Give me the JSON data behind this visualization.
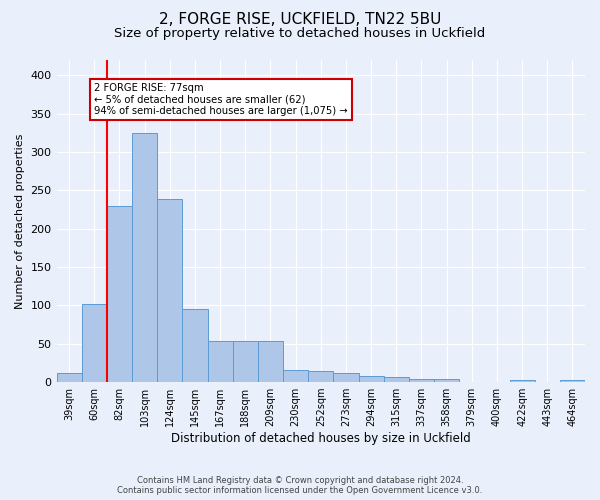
{
  "title1": "2, FORGE RISE, UCKFIELD, TN22 5BU",
  "title2": "Size of property relative to detached houses in Uckfield",
  "xlabel": "Distribution of detached houses by size in Uckfield",
  "ylabel": "Number of detached properties",
  "categories": [
    "39sqm",
    "60sqm",
    "82sqm",
    "103sqm",
    "124sqm",
    "145sqm",
    "167sqm",
    "188sqm",
    "209sqm",
    "230sqm",
    "252sqm",
    "273sqm",
    "294sqm",
    "315sqm",
    "337sqm",
    "358sqm",
    "379sqm",
    "400sqm",
    "422sqm",
    "443sqm",
    "464sqm"
  ],
  "values": [
    12,
    102,
    229,
    325,
    239,
    95,
    54,
    54,
    54,
    16,
    14,
    12,
    8,
    7,
    4,
    4,
    0,
    0,
    3,
    0,
    3
  ],
  "bar_color": "#aec6e8",
  "bar_edge_color": "#5b9bd5",
  "red_line_x": 1,
  "annotation_text": "2 FORGE RISE: 77sqm\n← 5% of detached houses are smaller (62)\n94% of semi-detached houses are larger (1,075) →",
  "annotation_box_color": "#ffffff",
  "annotation_box_edge_color": "#cc0000",
  "ylim": [
    0,
    420
  ],
  "yticks": [
    0,
    50,
    100,
    150,
    200,
    250,
    300,
    350,
    400
  ],
  "footer1": "Contains HM Land Registry data © Crown copyright and database right 2024.",
  "footer2": "Contains public sector information licensed under the Open Government Licence v3.0.",
  "bg_color": "#eaf0fb",
  "plot_bg_color": "#eaf0fb",
  "grid_color": "#ffffff",
  "title1_fontsize": 11,
  "title2_fontsize": 9.5
}
